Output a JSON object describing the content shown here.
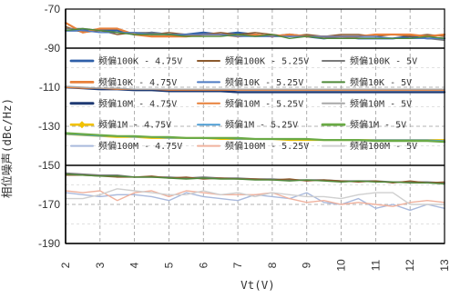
{
  "chart_data": {
    "type": "line",
    "xlabel": "Vt(V)",
    "ylabel": "相位噪声(dBc/Hz)",
    "xlim": [
      2,
      13
    ],
    "ylim": [
      -190,
      -70
    ],
    "x_ticks": [
      2,
      3,
      4,
      5,
      6,
      7,
      8,
      9,
      10,
      11,
      12,
      13
    ],
    "y_ticks": [
      -70,
      -90,
      -110,
      -130,
      -150,
      -170,
      -190
    ],
    "y_major_lines": [
      -90,
      -150
    ],
    "grid": "dashed vertical and horizontal gridlines",
    "legend_position": "inside, overlaying the plot area",
    "x": [
      2,
      2.5,
      3,
      3.5,
      4,
      4.5,
      5,
      5.5,
      6,
      6.5,
      7,
      7.5,
      8,
      8.5,
      9,
      9.5,
      10,
      10.5,
      11,
      11.5,
      12,
      12.5,
      13
    ],
    "series": [
      {
        "name": "频偏100K - 4.75V",
        "color": "#2e5fa8",
        "width": 2.2,
        "values": [
          -81,
          -81,
          -81,
          -81,
          -83,
          -82,
          -83,
          -83,
          -82,
          -83,
          -82,
          -83,
          -84,
          -83,
          -84,
          -85,
          -84,
          -85,
          -85,
          -85,
          -84,
          -85,
          -85
        ]
      },
      {
        "name": "频偏100K - 5.25V",
        "color": "#8c5a2e",
        "width": 1.4,
        "values": [
          -79,
          -82,
          -81,
          -83,
          -82,
          -83,
          -82,
          -83,
          -83,
          -82,
          -83,
          -82,
          -83,
          -84,
          -83,
          -84,
          -83,
          -83,
          -84,
          -83,
          -84,
          -83,
          -84
        ]
      },
      {
        "name": "频偏100K - 5V",
        "color": "#7a7a7a",
        "width": 1.4,
        "values": [
          -80,
          -80,
          -81,
          -82,
          -82,
          -82,
          -83,
          -83,
          -83,
          -83,
          -83,
          -84,
          -84,
          -84,
          -84,
          -84,
          -84,
          -85,
          -85,
          -85,
          -85,
          -85,
          -86
        ]
      },
      {
        "name": "频偏10K - 4.75V",
        "color": "#e8803a",
        "width": 2.2,
        "values": [
          -77,
          -82,
          -80,
          -80,
          -83,
          -84,
          -84,
          -84,
          -83,
          -83,
          -84,
          -83,
          -84,
          -83,
          -84,
          -84,
          -84,
          -84,
          -83,
          -83,
          -83,
          -84,
          -83
        ]
      },
      {
        "name": "频偏10K - 5.25V",
        "color": "#4f7cc4",
        "width": 1.4,
        "values": [
          -81,
          -81,
          -82,
          -82,
          -82,
          -83,
          -83,
          -83,
          -83,
          -83,
          -84,
          -84,
          -84,
          -84,
          -84,
          -84,
          -84,
          -84,
          -84,
          -85,
          -85,
          -85,
          -85
        ]
      },
      {
        "name": "频偏10K - 5V",
        "color": "#4f8a3a",
        "width": 1.4,
        "values": [
          -81,
          -80,
          -81,
          -82,
          -83,
          -83,
          -83,
          -84,
          -84,
          -84,
          -83,
          -84,
          -83,
          -85,
          -84,
          -85,
          -85,
          -85,
          -85,
          -85,
          -85,
          -84,
          -85
        ]
      },
      {
        "name": "频偏10M - 4.75V",
        "color": "#1f3a73",
        "width": 2.4,
        "values": [
          -110,
          -110.5,
          -111,
          -111,
          -111.5,
          -111.5,
          -112,
          -112,
          -112,
          -112,
          -112.5,
          -112.5,
          -112.5,
          -112.5,
          -112.5,
          -112.5,
          -112.5,
          -112.5,
          -112.5,
          -112.5,
          -112.5,
          -112.5,
          -112.5
        ]
      },
      {
        "name": "频偏10M - 5.25V",
        "color": "#e8803a",
        "width": 1.4,
        "values": [
          -110,
          -110.5,
          -110.5,
          -111,
          -111,
          -111,
          -111.5,
          -111.5,
          -111.5,
          -111.5,
          -111.5,
          -111.5,
          -111.5,
          -111.5,
          -111.5,
          -111.5,
          -111.5,
          -111.5,
          -111.5,
          -111.5,
          -111.5,
          -111.5,
          -111.5
        ]
      },
      {
        "name": "频偏10M - 5V",
        "color": "#a8a8a8",
        "width": 1.4,
        "values": [
          -109.5,
          -110,
          -110.5,
          -110.5,
          -111,
          -111,
          -111,
          -111,
          -111,
          -111,
          -111,
          -111,
          -111,
          -111,
          -111,
          -111,
          -111,
          -111,
          -111,
          -111,
          -111,
          -111,
          -111
        ]
      },
      {
        "name": "频偏1M - 4.75V",
        "color": "#f2c200",
        "width": 2.0,
        "values": [
          -134,
          -134.5,
          -135,
          -135.5,
          -135.5,
          -136,
          -136,
          -136,
          -136,
          -136.5,
          -136.5,
          -136.5,
          -136.5,
          -137,
          -137,
          -137,
          -137,
          -137,
          -137,
          -137,
          -137,
          -137,
          -137
        ]
      },
      {
        "name": "频偏1M - 5.25V",
        "color": "#4f9ed4",
        "width": 1.4,
        "values": [
          -134,
          -134.5,
          -135,
          -135,
          -135.5,
          -135.5,
          -136,
          -136,
          -136,
          -136,
          -136.5,
          -136.5,
          -136.5,
          -136.5,
          -136.5,
          -137,
          -137,
          -137,
          -137,
          -137,
          -137,
          -137,
          -137.5
        ]
      },
      {
        "name": "频偏1M - 5V",
        "color": "#6aaa46",
        "width": 2.2,
        "values": [
          -133.5,
          -134,
          -134.5,
          -135,
          -135,
          -135.5,
          -135.5,
          -136,
          -136,
          -136,
          -136,
          -136.5,
          -136.5,
          -136.5,
          -136.5,
          -137,
          -137,
          -137,
          -137.5,
          -137.5,
          -137.5,
          -137.5,
          -138
        ]
      },
      {
        "name": "频偏100M - 4.75V",
        "color": "#a9b9dc",
        "width": 1.4,
        "values": [
          -164,
          -165,
          -166,
          -165,
          -165,
          -166,
          -168,
          -164,
          -166,
          -167,
          -168,
          -165,
          -166,
          -167,
          -164,
          -169,
          -170,
          -167,
          -172,
          -170,
          -173,
          -170,
          -172
        ]
      },
      {
        "name": "频偏100M - 5.25V",
        "color": "#f0b29e",
        "width": 1.4,
        "values": [
          -163,
          -164,
          -163,
          -168,
          -164,
          -163,
          -166,
          -163,
          -164,
          -165,
          -165,
          -165,
          -164,
          -167,
          -169,
          -168,
          -170,
          -169,
          -170,
          -171,
          -169,
          -168,
          -169
        ]
      },
      {
        "name": "频偏100M - 5V",
        "color": "#cfcfcf",
        "width": 1.4,
        "values": [
          -167,
          -167,
          -165,
          -162,
          -163,
          -164,
          -165,
          -165,
          -163,
          -165,
          -164,
          -166,
          -164,
          -165,
          -166,
          -166,
          -167,
          -165,
          -164,
          -164,
          -170,
          -170,
          -170
        ]
      },
      {
        "name": "",
        "color": "#7a7a7a",
        "width": 1.6,
        "values": [
          -154,
          -154.5,
          -155,
          -155,
          -156,
          -156,
          -156,
          -156.5,
          -156,
          -156.5,
          -156.5,
          -157,
          -157,
          -157.5,
          -157.5,
          -157.5,
          -158,
          -158,
          -158,
          -158.5,
          -158.5,
          -158.5,
          -159
        ]
      },
      {
        "name": "",
        "color": "#8c5a2e",
        "width": 1.4,
        "values": [
          -155,
          -155,
          -155.5,
          -156,
          -156,
          -155.5,
          -156.5,
          -156,
          -157,
          -156.5,
          -157,
          -157,
          -157.5,
          -157,
          -158,
          -157.5,
          -158,
          -158.5,
          -158,
          -159,
          -158,
          -159,
          -158.5
        ]
      },
      {
        "name": "",
        "color": "#4f8a3a",
        "width": 1.4,
        "values": [
          -154.5,
          -155,
          -155.5,
          -155.5,
          -156,
          -156,
          -156.5,
          -157,
          -156.5,
          -157,
          -157,
          -157.5,
          -157.5,
          -158,
          -157.5,
          -158,
          -158.5,
          -158,
          -158.5,
          -158.5,
          -159,
          -159,
          -159.5
        ]
      }
    ],
    "legend": [
      {
        "label": "频偏100K - 4.75V",
        "color": "#2e5fa8",
        "width": 2.2,
        "marker": ""
      },
      {
        "label": "频偏100K - 5.25V",
        "color": "#8c5a2e",
        "width": 1.4,
        "marker": ""
      },
      {
        "label": "频偏100K - 5V",
        "color": "#7a7a7a",
        "width": 1.4,
        "marker": ""
      },
      {
        "label": "频偏10K - 4.75V",
        "color": "#e8803a",
        "width": 2.2,
        "marker": ""
      },
      {
        "label": "频偏10K - 5.25V",
        "color": "#4f7cc4",
        "width": 1.4,
        "marker": ""
      },
      {
        "label": "频偏10K - 5V",
        "color": "#4f8a3a",
        "width": 1.4,
        "marker": ""
      },
      {
        "label": "频偏10M - 4.75V",
        "color": "#1f3a73",
        "width": 2.4,
        "marker": ""
      },
      {
        "label": "频偏10M - 5.25V",
        "color": "#e8803a",
        "width": 1.4,
        "marker": ""
      },
      {
        "label": "频偏10M - 5V",
        "color": "#a8a8a8",
        "width": 1.4,
        "marker": ""
      },
      {
        "label": "频偏1M - 4.75V",
        "color": "#f2c200",
        "width": 2.0,
        "marker": "diamond"
      },
      {
        "label": "频偏1M - 5.25V",
        "color": "#4f9ed4",
        "width": 1.4,
        "marker": ""
      },
      {
        "label": "频偏1M - 5V",
        "color": "#6aaa46",
        "width": 2.2,
        "marker": ""
      },
      {
        "label": "频偏100M - 4.75V",
        "color": "#a9b9dc",
        "width": 1.4,
        "marker": ""
      },
      {
        "label": "频偏100M - 5.25V",
        "color": "#f0b29e",
        "width": 1.4,
        "marker": ""
      },
      {
        "label": "频偏100M - 5V",
        "color": "#cfcfcf",
        "width": 1.4,
        "marker": ""
      }
    ]
  }
}
